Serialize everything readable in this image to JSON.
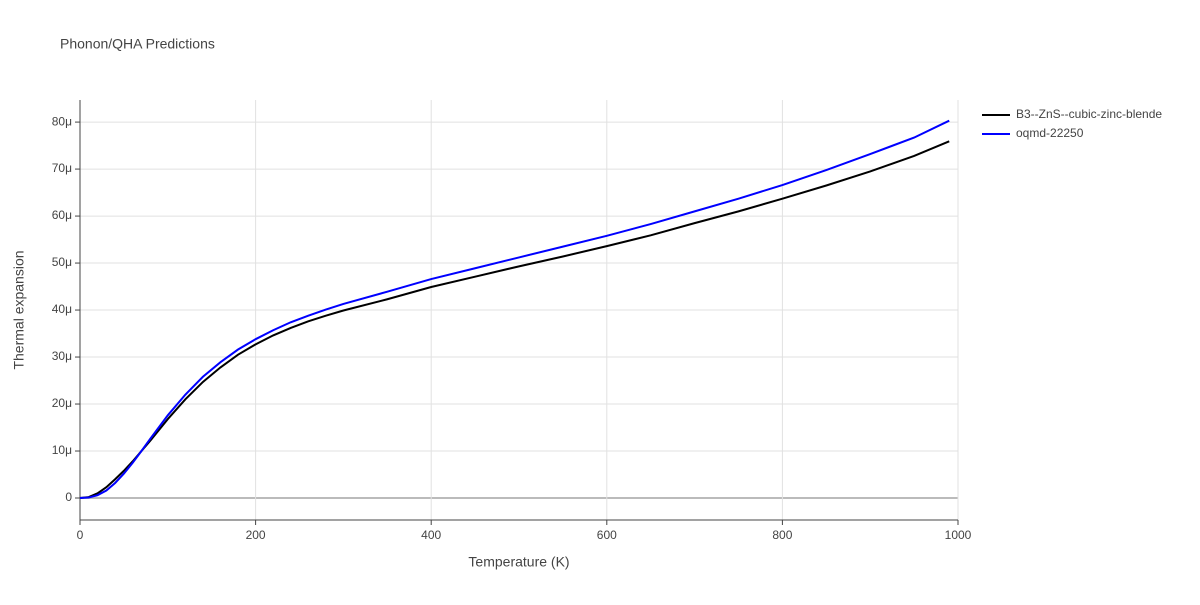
{
  "chart_data": {
    "type": "line",
    "title": "Phonon/QHA Predictions",
    "x_label": "Temperature (K)",
    "y_label": "Thermal expansion",
    "x": [
      0,
      10,
      20,
      30,
      40,
      50,
      60,
      70,
      80,
      100,
      120,
      140,
      160,
      180,
      200,
      220,
      240,
      260,
      280,
      300,
      350,
      400,
      450,
      500,
      550,
      600,
      650,
      700,
      750,
      800,
      850,
      900,
      950,
      990
    ],
    "series": [
      {
        "name": "B3--ZnS--cubic-zinc-blende",
        "color": "#000000",
        "values": [
          0,
          2e-07,
          1e-06,
          2.3e-06,
          4e-06,
          5.8e-06,
          7.8e-06,
          1e-05,
          1.22e-05,
          1.68e-05,
          2.1e-05,
          2.47e-05,
          2.78e-05,
          3.05e-05,
          3.27e-05,
          3.46e-05,
          3.62e-05,
          3.76e-05,
          3.88e-05,
          3.99e-05,
          4.23e-05,
          4.49e-05,
          4.71e-05,
          4.93e-05,
          5.14e-05,
          5.36e-05,
          5.59e-05,
          5.85e-05,
          6.1e-05,
          6.37e-05,
          6.65e-05,
          6.95e-05,
          7.28e-05,
          7.59e-05
        ]
      },
      {
        "name": "oqmd-22250",
        "color": "#0000ff",
        "values": [
          0,
          1e-07,
          6e-07,
          1.6e-06,
          3.2e-06,
          5.2e-06,
          7.5e-06,
          1e-05,
          1.26e-05,
          1.76e-05,
          2.2e-05,
          2.58e-05,
          2.89e-05,
          3.16e-05,
          3.38e-05,
          3.57e-05,
          3.74e-05,
          3.88e-05,
          4.01e-05,
          4.13e-05,
          4.39e-05,
          4.66e-05,
          4.89e-05,
          5.12e-05,
          5.35e-05,
          5.58e-05,
          5.83e-05,
          6.1e-05,
          6.37e-05,
          6.66e-05,
          6.98e-05,
          7.32e-05,
          7.67e-05,
          8.03e-05
        ]
      }
    ],
    "xlim": [
      0,
      1000
    ],
    "xticks": [
      0,
      200,
      400,
      600,
      800,
      1000
    ],
    "ylim": [
      -4.68e-06,
      8.47e-05
    ],
    "yticks": [
      0,
      {
        "value": 1e-05,
        "label": "10μ"
      },
      {
        "value": 2e-05,
        "label": "20μ"
      },
      {
        "value": 3e-05,
        "label": "30μ"
      },
      {
        "value": 4e-05,
        "label": "40μ"
      },
      {
        "value": 5e-05,
        "label": "50μ"
      },
      {
        "value": 6e-05,
        "label": "60μ"
      },
      {
        "value": 7e-05,
        "label": "70μ"
      },
      {
        "value": 8e-05,
        "label": "80μ"
      }
    ],
    "grid": true,
    "legend": "top-right"
  }
}
